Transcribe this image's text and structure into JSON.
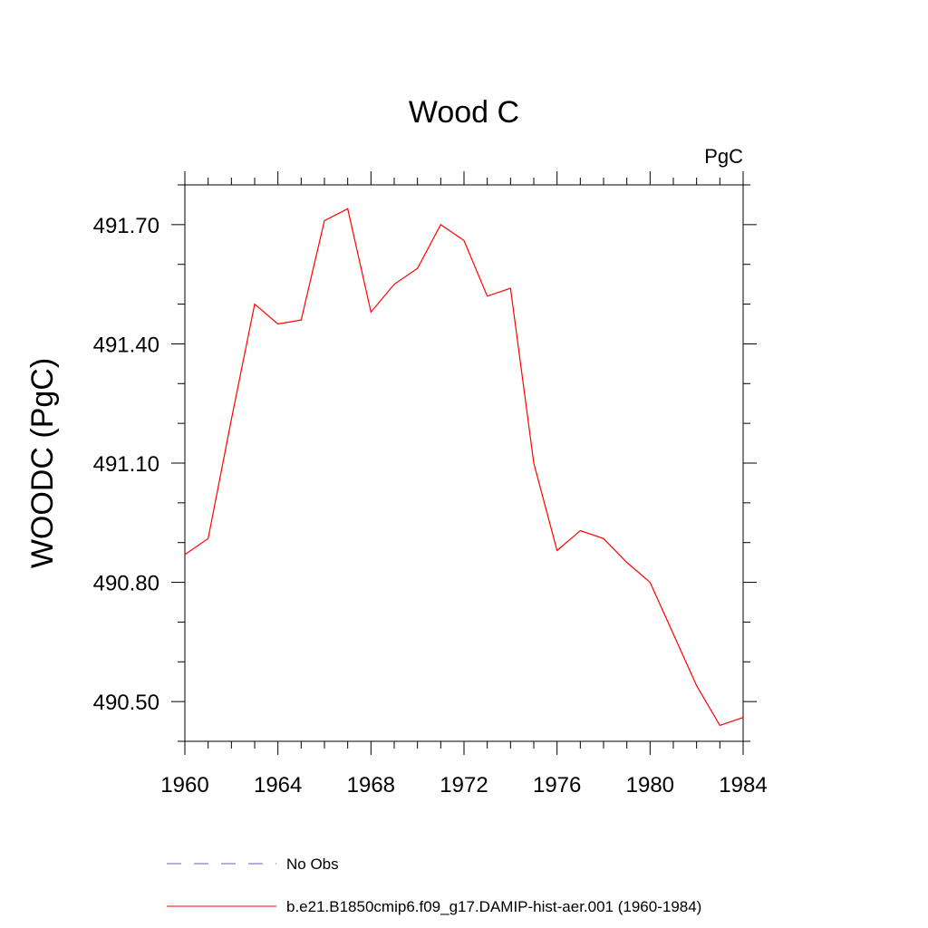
{
  "chart_data": {
    "type": "line",
    "title": "Wood C",
    "units_label": "PgC",
    "xlabel": "",
    "ylabel": "WOODC  (PgC)",
    "xlim": [
      1960,
      1984
    ],
    "ylim": [
      490.4,
      491.8
    ],
    "x_ticks": [
      1960,
      1964,
      1968,
      1972,
      1976,
      1980,
      1984
    ],
    "x_tick_labels": [
      "1960",
      "1964",
      "1968",
      "1972",
      "1976",
      "1980",
      "1984"
    ],
    "y_ticks": [
      490.5,
      490.8,
      491.1,
      491.4,
      491.7
    ],
    "y_tick_labels": [
      "490.50",
      "490.80",
      "491.10",
      "491.40",
      "491.70"
    ],
    "y_minor_step": 0.1,
    "x_minor_step": 1,
    "grid": false,
    "legend_placement": "bottom",
    "series": [
      {
        "name": "b.e21.B1850cmip6.f09_g17.DAMIP-hist-aer.001 (1960-1984)",
        "color": "#ff0000",
        "style": "solid",
        "x": [
          1960,
          1961,
          1962,
          1963,
          1964,
          1965,
          1966,
          1967,
          1968,
          1969,
          1970,
          1971,
          1972,
          1973,
          1974,
          1975,
          1976,
          1977,
          1978,
          1979,
          1980,
          1981,
          1982,
          1983,
          1984
        ],
        "values": [
          490.87,
          490.91,
          491.21,
          491.5,
          491.45,
          491.46,
          491.71,
          491.74,
          491.48,
          491.55,
          491.59,
          491.7,
          491.66,
          491.52,
          491.54,
          491.1,
          490.88,
          490.93,
          490.91,
          490.85,
          490.8,
          490.67,
          490.54,
          490.44,
          490.46
        ]
      }
    ],
    "legend": [
      {
        "label": "No Obs",
        "color": "#6a5acd",
        "style": "dashed"
      },
      {
        "label": "b.e21.B1850cmip6.f09_g17.DAMIP-hist-aer.001 (1960-1984)",
        "color": "#ff0000",
        "style": "solid"
      }
    ]
  }
}
